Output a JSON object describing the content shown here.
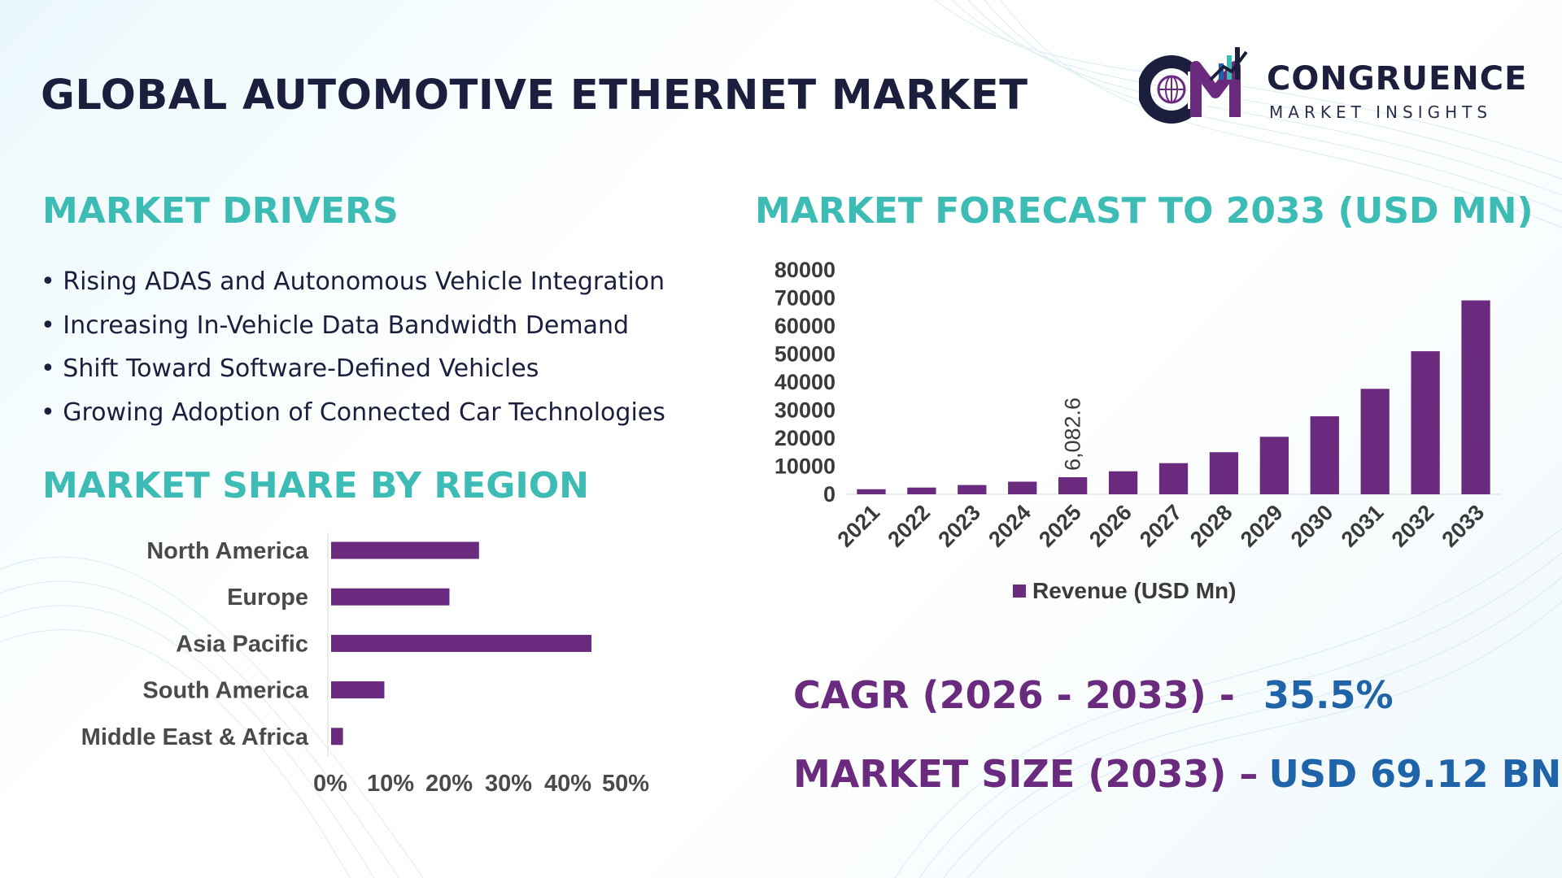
{
  "header": {
    "title": "GLOBAL AUTOMOTIVE ETHERNET MARKET",
    "logo_name": "CONGRUENCE",
    "logo_tagline": "MARKET INSIGHTS"
  },
  "drivers": {
    "title": "MARKET DRIVERS",
    "items": [
      "Rising ADAS and Autonomous Vehicle Integration",
      "Increasing In-Vehicle Data Bandwidth Demand",
      "Shift Toward Software-Defined Vehicles",
      "Growing Adoption of Connected Car Technologies"
    ]
  },
  "forecast": {
    "title": "MARKET FORECAST TO 2033 (USD MN)"
  },
  "region": {
    "title": "MARKET SHARE BY REGION"
  },
  "stats": {
    "cagr_label": "CAGR (2026 - 2033) -",
    "cagr_value": "35.5%",
    "size_label": "MARKET SIZE (2033) –",
    "size_value": "USD 69.12 BN"
  },
  "colors": {
    "bar": "#6a2a7e",
    "section_title": "#3cbcb4",
    "stat_label": "#6a2a7e",
    "stat_value": "#1f63a8",
    "heading": "#1b1e3d"
  },
  "chart_data": [
    {
      "type": "bar",
      "title": "MARKET FORECAST TO 2033 (USD MN)",
      "categories": [
        "2021",
        "2022",
        "2023",
        "2024",
        "2025",
        "2026",
        "2027",
        "2028",
        "2029",
        "2030",
        "2031",
        "2032",
        "2033"
      ],
      "series": [
        {
          "name": "Revenue (USD Mn)",
          "values": [
            1800,
            2400,
            3300,
            4500,
            6082.6,
            8200,
            11100,
            15000,
            20500,
            27800,
            37600,
            51000,
            69120
          ]
        }
      ],
      "data_labels": [
        {
          "category": "2025",
          "text": "6,082.6"
        }
      ],
      "yticks": [
        "80000",
        "70000",
        "60000",
        "50000",
        "40000",
        "30000",
        "20000",
        "10000",
        "0"
      ],
      "ylim": [
        0,
        80000
      ],
      "legend": "bottom",
      "grid": false
    },
    {
      "type": "bar",
      "orientation": "horizontal",
      "title": "MARKET SHARE BY REGION",
      "categories": [
        "North America",
        "Europe",
        "Asia Pacific",
        "South America",
        "Middle East & Africa"
      ],
      "values": [
        25,
        20,
        44,
        9,
        2
      ],
      "xticks": [
        "0%",
        "10%",
        "20%",
        "30%",
        "40%",
        "50%"
      ],
      "xlim": [
        0,
        50
      ],
      "grid": false
    }
  ]
}
